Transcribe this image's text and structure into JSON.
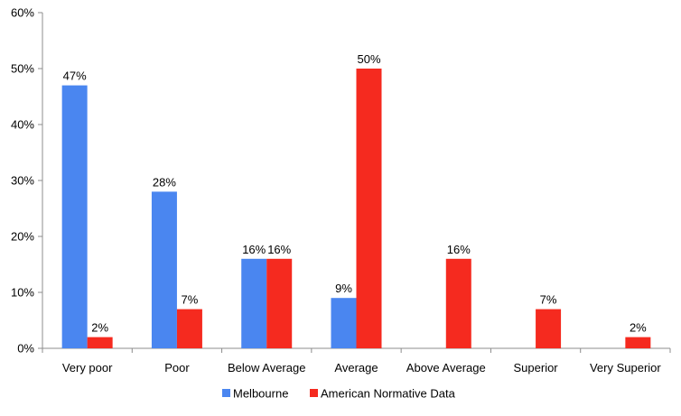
{
  "chart_data": {
    "type": "bar",
    "categories": [
      "Very poor",
      "Poor",
      "Below Average",
      "Average",
      "Above Average",
      "Superior",
      "Very Superior"
    ],
    "series": [
      {
        "name": "Melbourne",
        "values": [
          47,
          28,
          16,
          9,
          null,
          null,
          null
        ],
        "color": "#4a86f0"
      },
      {
        "name": "American Normative Data",
        "values": [
          2,
          7,
          16,
          50,
          16,
          7,
          2
        ],
        "color": "#f52a1f"
      }
    ],
    "y_ticks": [
      "0%",
      "10%",
      "20%",
      "30%",
      "40%",
      "50%",
      "60%"
    ],
    "ylim": [
      0,
      60
    ],
    "value_suffix": "%",
    "grid": false,
    "legend_position": "bottom",
    "title": "",
    "xlabel": "",
    "ylabel": ""
  }
}
